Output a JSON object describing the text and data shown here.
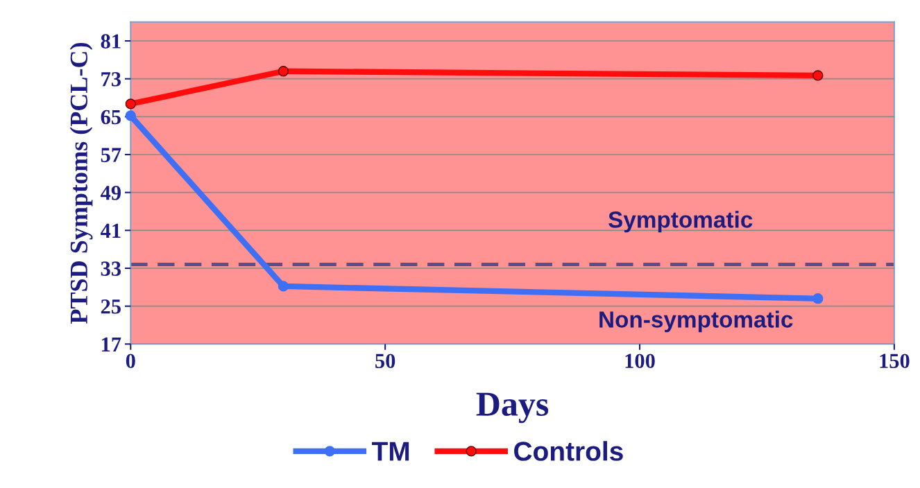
{
  "chart_data": {
    "type": "line",
    "xlabel": "Days",
    "ylabel": "PTSD Symptoms (PCL-C)",
    "x": [
      0,
      30,
      135
    ],
    "series": [
      {
        "name": "TM",
        "color": "#3f6ff5",
        "values": [
          65.2,
          29.2,
          26.6
        ]
      },
      {
        "name": "Controls",
        "color": "#ff0d0d",
        "values": [
          67.7,
          74.6,
          73.7
        ]
      }
    ],
    "xlim": [
      0,
      150
    ],
    "xticks": [
      0,
      50,
      100,
      150
    ],
    "ylim": [
      17,
      85
    ],
    "yticks": [
      17,
      25,
      33,
      41,
      49,
      57,
      65,
      73,
      81
    ],
    "ref_lines": [
      {
        "axis": "y",
        "value": 33.8,
        "color": "#5a4f8a",
        "line_style": "dashed"
      }
    ],
    "annotations": [
      "Symptomatic",
      "Non-symptomatic"
    ],
    "grid": "y",
    "legend": "bottom",
    "marker": "circle",
    "line_style": "solid"
  }
}
